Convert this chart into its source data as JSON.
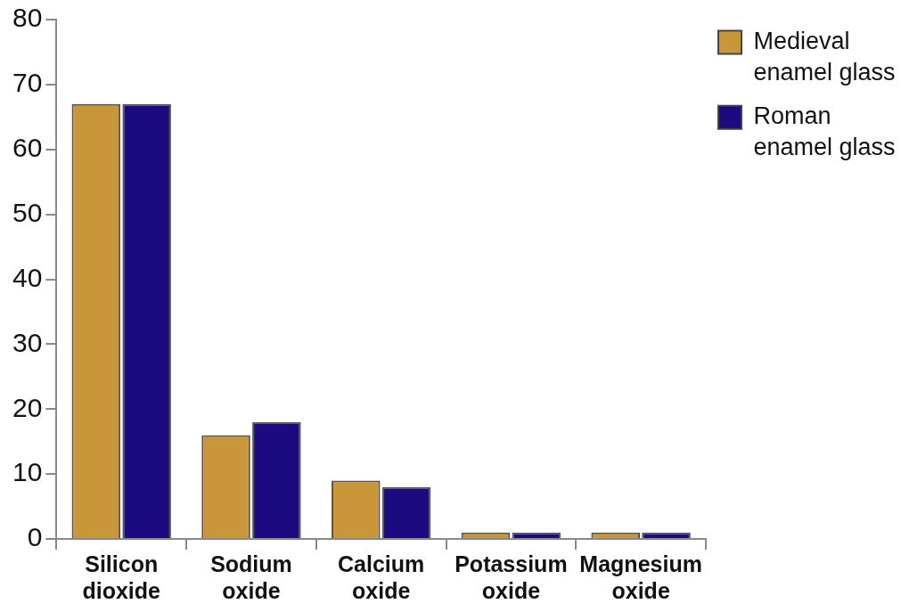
{
  "chart_data": {
    "type": "bar",
    "categories": [
      "Silicon dioxide",
      "Sodium oxide",
      "Calcium oxide",
      "Potassium oxide",
      "Magnesium oxide"
    ],
    "series": [
      {
        "name": "Medieval enamel glass",
        "color": "#c9963a",
        "values": [
          67,
          16,
          9,
          1,
          1
        ]
      },
      {
        "name": "Roman enamel glass",
        "color": "#1c0a80",
        "values": [
          67,
          18,
          8,
          1,
          1
        ]
      }
    ],
    "ylim": [
      0,
      80
    ],
    "yticks": [
      0,
      10,
      20,
      30,
      40,
      50,
      60,
      70,
      80
    ],
    "legend": "top right"
  }
}
